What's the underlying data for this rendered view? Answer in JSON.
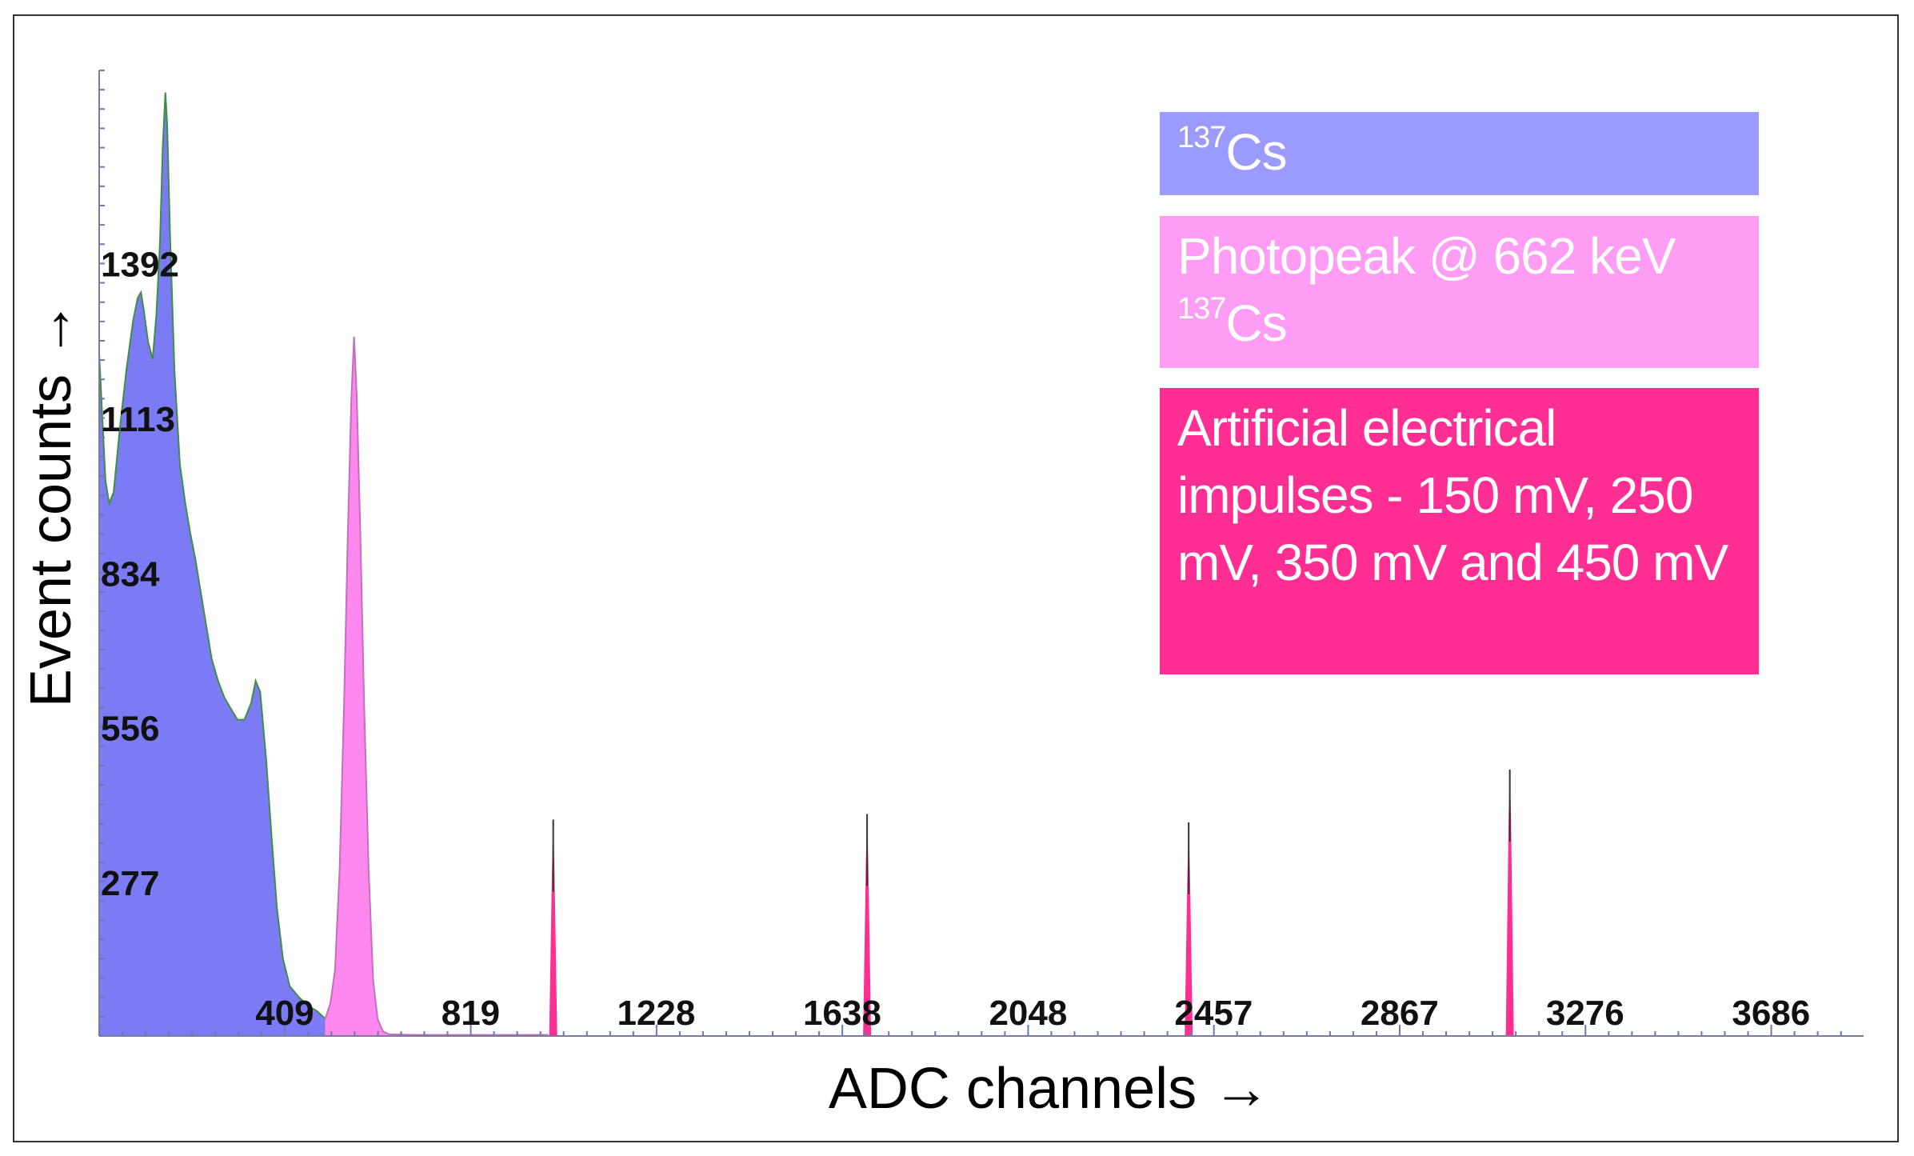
{
  "chart_data": {
    "type": "area",
    "xlabel": "ADC channels →",
    "ylabel": "Event counts →",
    "xlim": [
      0,
      3890
    ],
    "ylim": [
      0,
      1740
    ],
    "x_ticks": [
      409,
      819,
      1228,
      1638,
      2048,
      2457,
      2867,
      3276,
      3686
    ],
    "y_ticks": [
      277,
      556,
      834,
      1113,
      1392
    ],
    "grid": false,
    "legend_position": "top-right",
    "series": [
      {
        "name": "137Cs",
        "color": "#7b7bf5",
        "points": [
          [
            0,
            1230
          ],
          [
            6,
            1130
          ],
          [
            14,
            1000
          ],
          [
            22,
            960
          ],
          [
            32,
            980
          ],
          [
            45,
            1090
          ],
          [
            60,
            1200
          ],
          [
            75,
            1290
          ],
          [
            85,
            1330
          ],
          [
            92,
            1340
          ],
          [
            98,
            1310
          ],
          [
            108,
            1250
          ],
          [
            118,
            1220
          ],
          [
            126,
            1300
          ],
          [
            134,
            1430
          ],
          [
            140,
            1600
          ],
          [
            146,
            1700
          ],
          [
            150,
            1640
          ],
          [
            156,
            1450
          ],
          [
            166,
            1200
          ],
          [
            178,
            1030
          ],
          [
            190,
            960
          ],
          [
            200,
            910
          ],
          [
            212,
            860
          ],
          [
            224,
            800
          ],
          [
            236,
            740
          ],
          [
            248,
            680
          ],
          [
            262,
            640
          ],
          [
            276,
            610
          ],
          [
            290,
            590
          ],
          [
            305,
            570
          ],
          [
            320,
            570
          ],
          [
            335,
            600
          ],
          [
            345,
            640
          ],
          [
            355,
            620
          ],
          [
            368,
            500
          ],
          [
            380,
            360
          ],
          [
            392,
            230
          ],
          [
            405,
            140
          ],
          [
            420,
            90
          ],
          [
            440,
            70
          ],
          [
            460,
            55
          ],
          [
            480,
            45
          ],
          [
            500,
            30
          ],
          [
            510,
            8
          ],
          [
            520,
            3
          ]
        ]
      },
      {
        "name": "Photopeak @ 662 keV 137Cs",
        "color": "#ff88ee",
        "points": [
          [
            498,
            30
          ],
          [
            510,
            60
          ],
          [
            520,
            120
          ],
          [
            530,
            300
          ],
          [
            540,
            600
          ],
          [
            548,
            900
          ],
          [
            556,
            1150
          ],
          [
            562,
            1260
          ],
          [
            568,
            1150
          ],
          [
            576,
            900
          ],
          [
            584,
            600
          ],
          [
            594,
            300
          ],
          [
            604,
            100
          ],
          [
            614,
            30
          ],
          [
            626,
            8
          ],
          [
            640,
            3
          ],
          [
            700,
            2
          ],
          [
            800,
            2
          ],
          [
            990,
            2
          ]
        ]
      },
      {
        "name": "Artificial electrical impulses - 150 mV, 250 mV, 350 mV and 450 mV",
        "color": "#ff2e93",
        "peaks": [
          {
            "x": 1001,
            "y": 390,
            "label": "150 mV"
          },
          {
            "x": 1693,
            "y": 400,
            "label": "250 mV"
          },
          {
            "x": 2402,
            "y": 385,
            "label": "350 mV"
          },
          {
            "x": 3110,
            "y": 480,
            "label": "450 mV"
          }
        ]
      }
    ]
  },
  "legend": {
    "cs": {
      "sup": "137",
      "text": "Cs"
    },
    "photopeak": {
      "line1": "Photopeak @ 662 keV",
      "sup": "137",
      "text": "Cs"
    },
    "pulser": {
      "text": "Artificial electrical impulses - 150 mV, 250 mV, 350 mV and 450 mV"
    }
  }
}
